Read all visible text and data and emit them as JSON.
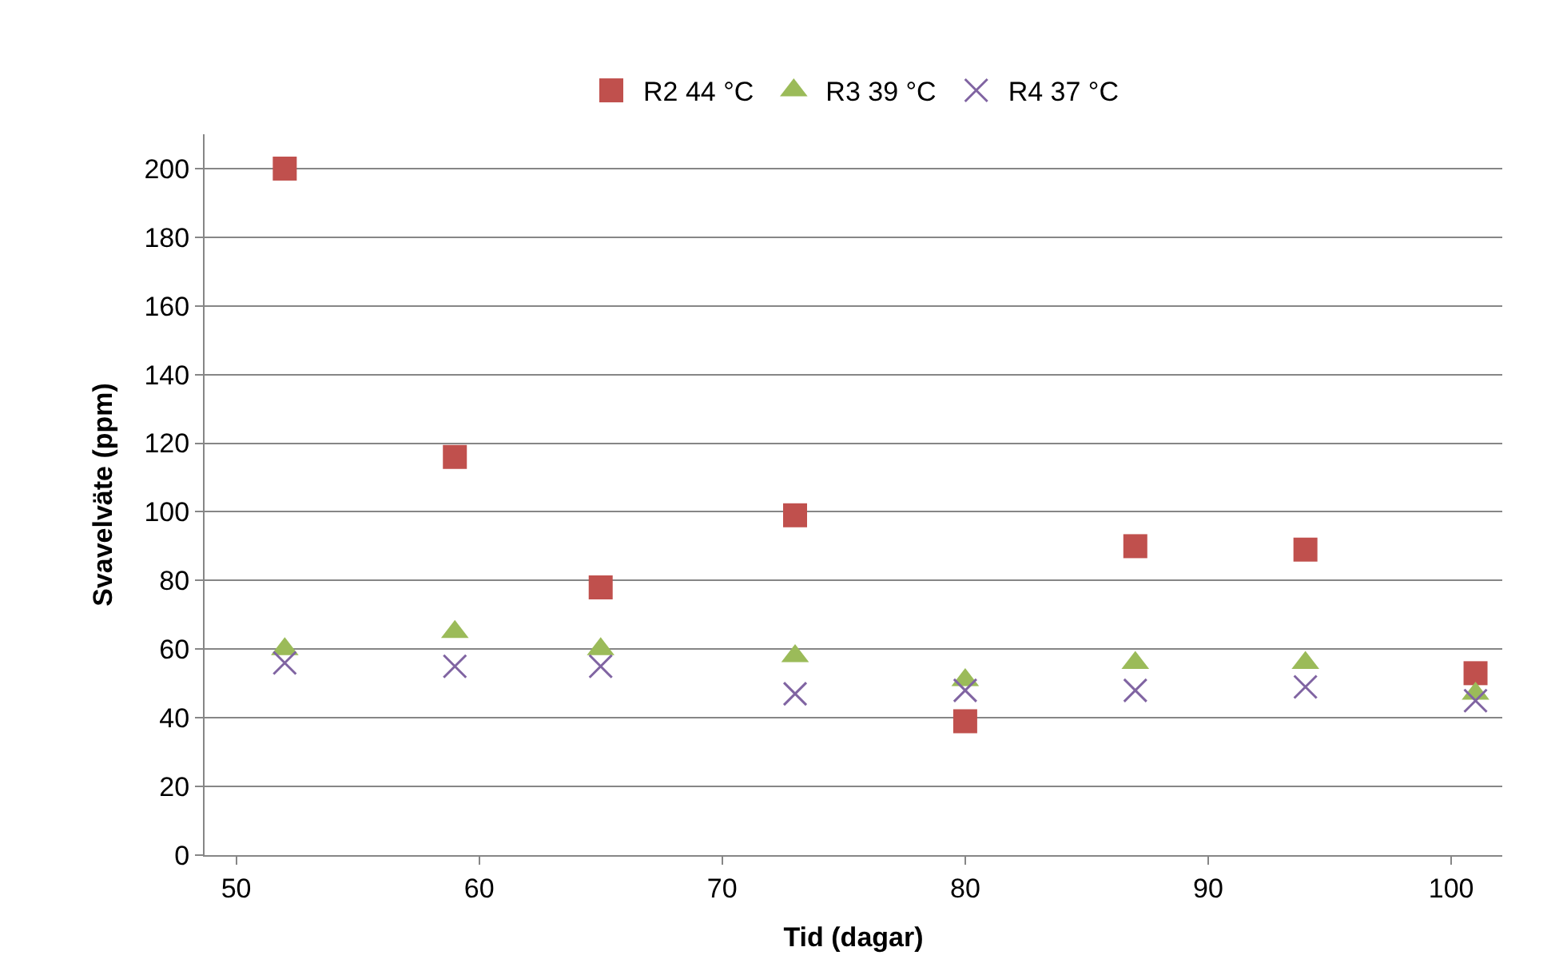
{
  "chart_data": {
    "type": "scatter",
    "xlabel": "Tid (dagar)",
    "ylabel": "Svavelväte (ppm)",
    "x": [
      52,
      59,
      65,
      73,
      80,
      87,
      94,
      101
    ],
    "series": [
      {
        "name": "R2 44 °C",
        "color": "#c0504d",
        "marker": "square",
        "values": [
          200,
          116,
          78,
          99,
          39,
          90,
          89,
          53
        ]
      },
      {
        "name": "R3 39 °C",
        "color": "#9bbb59",
        "marker": "triangle",
        "values": [
          60,
          65,
          60,
          58,
          51,
          56,
          56,
          47
        ]
      },
      {
        "name": "R4 37 °C",
        "color": "#8064a2",
        "marker": "cross",
        "values": [
          56,
          55,
          55,
          47,
          48,
          48,
          49,
          45
        ]
      }
    ],
    "xlim": [
      48.7,
      102.1
    ],
    "xticks": [
      50,
      60,
      70,
      80,
      90,
      100
    ],
    "ylim": [
      0,
      210
    ],
    "yticks": [
      0,
      20,
      40,
      60,
      80,
      100,
      120,
      140,
      160,
      180,
      200
    ],
    "grid": "y",
    "legend": "top"
  }
}
